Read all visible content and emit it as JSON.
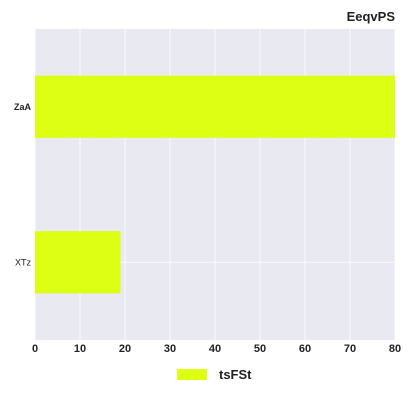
{
  "chart_data": {
    "type": "bar",
    "orientation": "horizontal",
    "title": "EeqvPS",
    "categories": [
      "ZaA",
      "XTz"
    ],
    "series": [
      {
        "name": "tsFSt",
        "color": "#dcff14",
        "values": [
          80,
          19
        ]
      }
    ],
    "xlim": [
      0,
      80
    ],
    "xticks": [
      "0",
      "10",
      "20",
      "30",
      "40",
      "50",
      "60",
      "70",
      "80"
    ],
    "grid": true,
    "legend_position": "bottom-center",
    "plot_background": "#e9e9f1",
    "grid_color": "#ffffff"
  }
}
